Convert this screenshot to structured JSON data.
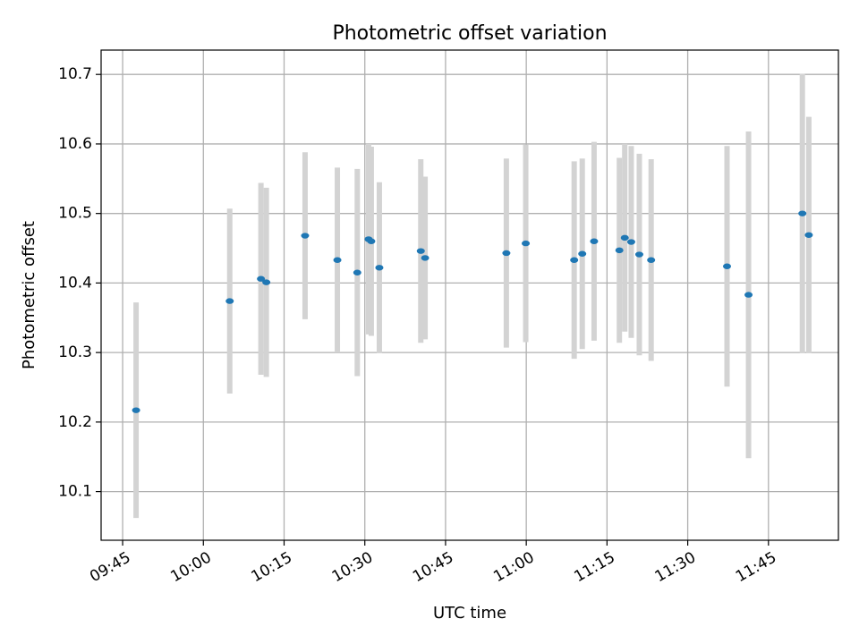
{
  "chart_data": {
    "type": "scatter",
    "title": "Photometric offset variation",
    "xlabel": "UTC time",
    "ylabel": "Photometric offset",
    "xlim": [
      "09:41",
      "11:58"
    ],
    "ylim": [
      10.03,
      10.735
    ],
    "grid": true,
    "x_ticks": [
      "09:45",
      "10:00",
      "10:15",
      "10:30",
      "10:45",
      "11:00",
      "11:15",
      "11:30",
      "11:45"
    ],
    "y_ticks": [
      10.1,
      10.2,
      10.3,
      10.4,
      10.5,
      10.6,
      10.7
    ],
    "point_color": "#1f77b4",
    "errorbar_color": "#d3d3d3",
    "points": [
      {
        "t": "09:47:30",
        "y": 10.217,
        "err": 0.155
      },
      {
        "t": "10:04:54",
        "y": 10.374,
        "err": 0.133
      },
      {
        "t": "10:10:42",
        "y": 10.406,
        "err": 0.138
      },
      {
        "t": "10:11:42",
        "y": 10.401,
        "err": 0.136
      },
      {
        "t": "10:18:54",
        "y": 10.468,
        "err": 0.12
      },
      {
        "t": "10:24:54",
        "y": 10.433,
        "err": 0.133
      },
      {
        "t": "10:28:36",
        "y": 10.415,
        "err": 0.149
      },
      {
        "t": "10:30:42",
        "y": 10.463,
        "err": 0.137
      },
      {
        "t": "10:31:12",
        "y": 10.46,
        "err": 0.136
      },
      {
        "t": "10:32:42",
        "y": 10.422,
        "err": 0.123
      },
      {
        "t": "10:40:24",
        "y": 10.446,
        "err": 0.132
      },
      {
        "t": "10:41:12",
        "y": 10.436,
        "err": 0.117
      },
      {
        "t": "10:56:18",
        "y": 10.443,
        "err": 0.136
      },
      {
        "t": "10:59:54",
        "y": 10.457,
        "err": 0.142
      },
      {
        "t": "11:08:54",
        "y": 10.433,
        "err": 0.142
      },
      {
        "t": "11:10:24",
        "y": 10.442,
        "err": 0.137
      },
      {
        "t": "11:12:36",
        "y": 10.46,
        "err": 0.143
      },
      {
        "t": "11:17:18",
        "y": 10.447,
        "err": 0.133
      },
      {
        "t": "11:18:18",
        "y": 10.465,
        "err": 0.135
      },
      {
        "t": "11:19:30",
        "y": 10.459,
        "err": 0.138
      },
      {
        "t": "11:21:00",
        "y": 10.441,
        "err": 0.145
      },
      {
        "t": "11:23:12",
        "y": 10.433,
        "err": 0.145
      },
      {
        "t": "11:37:18",
        "y": 10.424,
        "err": 0.173
      },
      {
        "t": "11:41:18",
        "y": 10.383,
        "err": 0.235
      },
      {
        "t": "11:51:18",
        "y": 10.5,
        "err": 0.201
      },
      {
        "t": "11:52:30",
        "y": 10.469,
        "err": 0.17
      }
    ]
  }
}
